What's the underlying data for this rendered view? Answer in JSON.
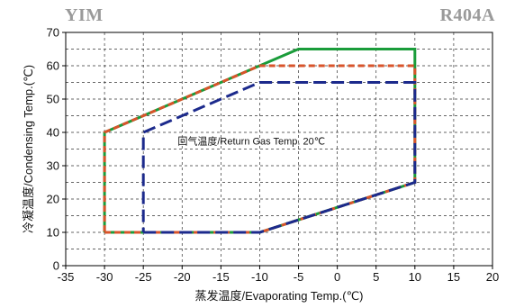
{
  "brand_left": "YIM",
  "brand_right": "R404A",
  "chart_data": {
    "type": "line",
    "xlabel": "蒸发温度/Evaporating Temp.(℃)",
    "ylabel": "冷凝温度/Condensing Temp.(℃)",
    "xlim": [
      -35,
      20
    ],
    "ylim": [
      0,
      70
    ],
    "xticks": [
      "-35",
      "-30",
      "-25",
      "-20",
      "-15",
      "-10",
      "-5",
      "0",
      "5",
      "10",
      "15",
      "20"
    ],
    "yticks": [
      "0",
      "10",
      "20",
      "30",
      "40",
      "50",
      "60",
      "70"
    ],
    "grid": "dashed",
    "annotation": {
      "text": "回气温度/Return Gas Temp. 20℃",
      "x": -15,
      "y": 37.5
    },
    "series": [
      {
        "style": "solid",
        "color": "#1a9c3a",
        "points": [
          [
            -30,
            10
          ],
          [
            -10,
            10
          ],
          [
            10,
            25
          ],
          [
            10,
            65
          ],
          [
            -5,
            65
          ],
          [
            -30,
            40
          ],
          [
            -30,
            10
          ]
        ]
      },
      {
        "style": "dashed",
        "color": "#d9542b",
        "points": [
          [
            -30,
            10
          ],
          [
            -10,
            10
          ],
          [
            10,
            25
          ],
          [
            10,
            60
          ],
          [
            -10,
            60
          ],
          [
            -30,
            40
          ],
          [
            -30,
            10
          ]
        ]
      },
      {
        "style": "dashed",
        "color": "#1c2a8c",
        "points": [
          [
            -25,
            10
          ],
          [
            -10,
            10
          ],
          [
            10,
            25
          ],
          [
            10,
            55
          ],
          [
            -10,
            55
          ],
          [
            -25,
            40
          ],
          [
            -25,
            10
          ]
        ]
      }
    ]
  }
}
